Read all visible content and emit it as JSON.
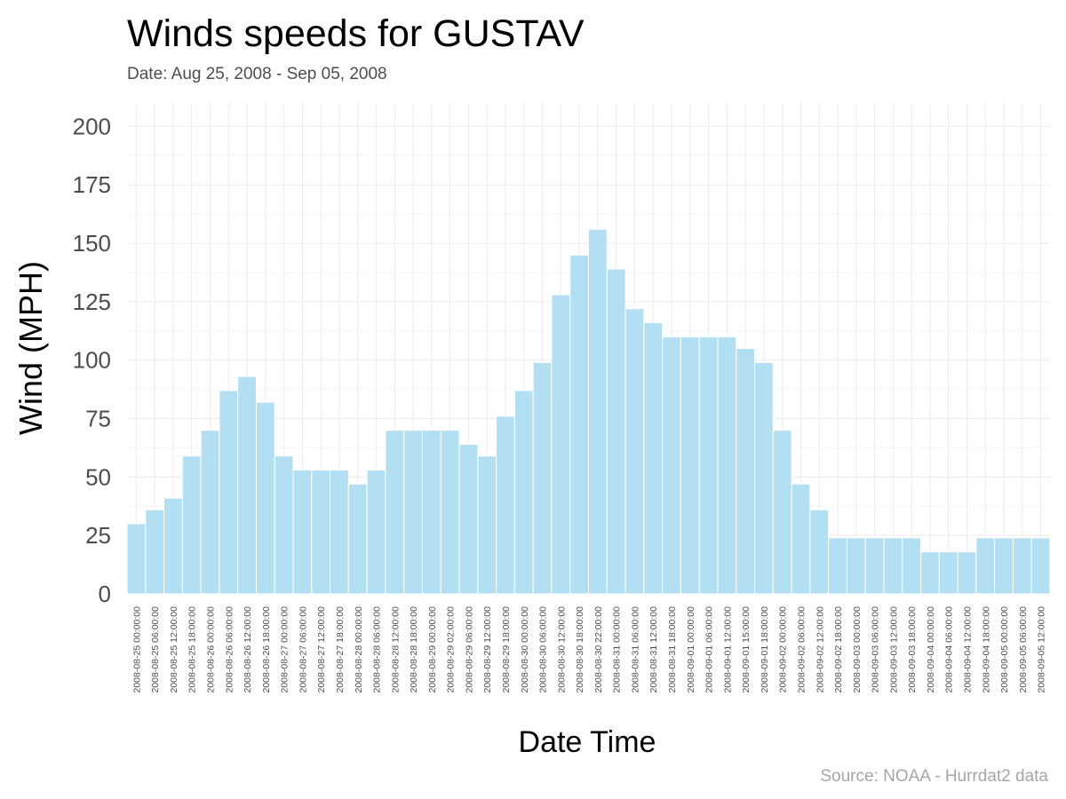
{
  "chart_data": {
    "type": "bar",
    "title": "Winds speeds for GUSTAV",
    "subtitle": "Date:  Aug 25, 2008 - Sep 05, 2008",
    "caption": "Source: NOAA - Hurrdat2 data",
    "xlabel": "Date Time",
    "ylabel": "Wind (MPH)",
    "ylim": [
      0,
      210
    ],
    "yticks": [
      0,
      25,
      50,
      75,
      100,
      125,
      150,
      175,
      200
    ],
    "grid": true,
    "bar_color": "#b3dff3",
    "categories": [
      "2008-08-25 00:00:00",
      "2008-08-25 06:00:00",
      "2008-08-25 12:00:00",
      "2008-08-25 18:00:00",
      "2008-08-26 00:00:00",
      "2008-08-26 06:00:00",
      "2008-08-26 12:00:00",
      "2008-08-26 18:00:00",
      "2008-08-27 00:00:00",
      "2008-08-27 06:00:00",
      "2008-08-27 12:00:00",
      "2008-08-27 18:00:00",
      "2008-08-28 00:00:00",
      "2008-08-28 06:00:00",
      "2008-08-28 12:00:00",
      "2008-08-28 18:00:00",
      "2008-08-29 00:00:00",
      "2008-08-29 02:00:00",
      "2008-08-29 06:00:00",
      "2008-08-29 12:00:00",
      "2008-08-29 18:00:00",
      "2008-08-30 00:00:00",
      "2008-08-30 06:00:00",
      "2008-08-30 12:00:00",
      "2008-08-30 18:00:00",
      "2008-08-30 22:00:00",
      "2008-08-31 00:00:00",
      "2008-08-31 06:00:00",
      "2008-08-31 12:00:00",
      "2008-08-31 18:00:00",
      "2008-09-01 00:00:00",
      "2008-09-01 06:00:00",
      "2008-09-01 12:00:00",
      "2008-09-01 15:00:00",
      "2008-09-01 18:00:00",
      "2008-09-02 00:00:00",
      "2008-09-02 06:00:00",
      "2008-09-02 12:00:00",
      "2008-09-02 18:00:00",
      "2008-09-03 00:00:00",
      "2008-09-03 06:00:00",
      "2008-09-03 12:00:00",
      "2008-09-03 18:00:00",
      "2008-09-04 00:00:00",
      "2008-09-04 06:00:00",
      "2008-09-04 12:00:00",
      "2008-09-04 18:00:00",
      "2008-09-05 00:00:00",
      "2008-09-05 06:00:00",
      "2008-09-05 12:00:00"
    ],
    "values": [
      30,
      36,
      41,
      59,
      70,
      87,
      93,
      82,
      59,
      53,
      53,
      53,
      47,
      53,
      70,
      70,
      70,
      70,
      64,
      59,
      76,
      87,
      99,
      128,
      145,
      156,
      139,
      122,
      116,
      110,
      110,
      110,
      110,
      105,
      99,
      70,
      47,
      36,
      24,
      24,
      24,
      24,
      24,
      18,
      18,
      18,
      24,
      24,
      24,
      24
    ]
  }
}
